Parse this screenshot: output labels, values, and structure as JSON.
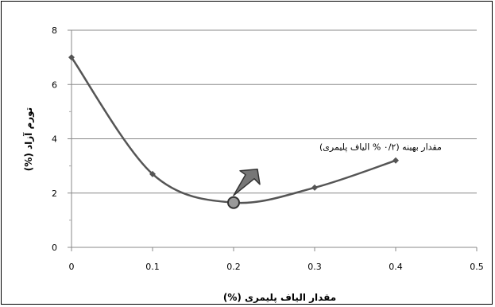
{
  "chart_data": {
    "type": "line",
    "x": [
      0,
      0.1,
      0.2,
      0.3,
      0.4
    ],
    "series": [
      {
        "values": [
          7.0,
          2.7,
          1.65,
          2.2,
          3.2
        ],
        "color": "#555555"
      }
    ],
    "xlim": [
      0,
      0.5
    ],
    "ylim": [
      0,
      8
    ],
    "x_ticks": [
      0,
      0.1,
      0.2,
      0.3,
      0.4,
      0.5
    ],
    "x_tick_labels": [
      "0",
      "0.1",
      "0.2",
      "0.3",
      "0.4",
      "0.5"
    ],
    "y_ticks": [
      0,
      2,
      4,
      6,
      8
    ],
    "y_tick_labels": [
      "0",
      "2",
      "4",
      "6",
      "8"
    ],
    "xlabel": "مقدار الیاف پلیمری (%)",
    "ylabel": "تورم آزاد (%)",
    "grid": {
      "horizontal": true,
      "vertical": false
    },
    "annotation": {
      "text": "مقدار بهینه (۰/۲ % الیاف پلیمری)",
      "x": 0.2,
      "y": 1.65
    },
    "colors": {
      "line": "#555555",
      "marker": "#555555",
      "grid": "#888888",
      "arrow": "#777777",
      "highlight_fill": "#999999"
    }
  }
}
